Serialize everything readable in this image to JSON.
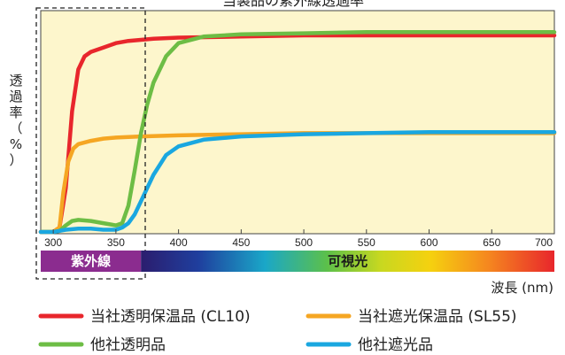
{
  "chart_data": {
    "type": "line",
    "title": "当製品の紫外線透過率",
    "ylabel": "透過率（%）",
    "xlabel": "波長 (nm)",
    "xlim": [
      290,
      700
    ],
    "x_ticks": [
      300,
      350,
      400,
      450,
      500,
      550,
      600,
      650,
      700
    ],
    "x_tick_labels": [
      "300",
      "350",
      "400",
      "450",
      "500",
      "550",
      "600",
      "650",
      "700"
    ],
    "ylim": [
      0,
      100
    ],
    "y_ticks_labeled": false,
    "grid": false,
    "legend_position": "bottom",
    "bands": [
      {
        "label": "紫外線",
        "range": [
          290,
          370
        ],
        "color": "#8b2c8f"
      },
      {
        "label": "可視光",
        "range": [
          370,
          700
        ],
        "color": "spectrum"
      }
    ],
    "series": [
      {
        "name": "当社透明保温品 (CL10)",
        "color": "#e8262c",
        "points": [
          [
            290,
            0
          ],
          [
            300,
            0
          ],
          [
            305,
            2
          ],
          [
            310,
            20
          ],
          [
            315,
            55
          ],
          [
            320,
            74
          ],
          [
            325,
            80
          ],
          [
            330,
            82
          ],
          [
            340,
            84
          ],
          [
            350,
            86
          ],
          [
            360,
            87
          ],
          [
            370,
            87.5
          ],
          [
            380,
            88
          ],
          [
            400,
            88.5
          ],
          [
            450,
            89
          ],
          [
            500,
            89.5
          ],
          [
            550,
            89.5
          ],
          [
            600,
            89.5
          ],
          [
            650,
            89.5
          ],
          [
            700,
            89.5
          ]
        ]
      },
      {
        "name": "当社遮光保温品 (SL55)",
        "color": "#f5a623",
        "points": [
          [
            290,
            0
          ],
          [
            300,
            0
          ],
          [
            305,
            2
          ],
          [
            308,
            18
          ],
          [
            312,
            32
          ],
          [
            316,
            38
          ],
          [
            320,
            40
          ],
          [
            330,
            41.5
          ],
          [
            340,
            42.5
          ],
          [
            350,
            43
          ],
          [
            370,
            43.5
          ],
          [
            400,
            44
          ],
          [
            450,
            44.5
          ],
          [
            500,
            45
          ],
          [
            550,
            45
          ],
          [
            600,
            45
          ],
          [
            650,
            45
          ],
          [
            700,
            45
          ]
        ]
      },
      {
        "name": "他社透明品",
        "color": "#6dbd45",
        "points": [
          [
            290,
            0
          ],
          [
            300,
            0
          ],
          [
            305,
            0.5
          ],
          [
            310,
            3
          ],
          [
            315,
            5
          ],
          [
            320,
            5.5
          ],
          [
            330,
            5
          ],
          [
            340,
            4
          ],
          [
            350,
            3
          ],
          [
            355,
            4
          ],
          [
            360,
            12
          ],
          [
            365,
            28
          ],
          [
            370,
            45
          ],
          [
            375,
            58
          ],
          [
            380,
            68
          ],
          [
            390,
            80
          ],
          [
            400,
            86
          ],
          [
            420,
            89
          ],
          [
            450,
            90
          ],
          [
            500,
            90.5
          ],
          [
            550,
            91
          ],
          [
            600,
            91
          ],
          [
            650,
            91
          ],
          [
            700,
            91
          ]
        ]
      },
      {
        "name": "他社遮光品",
        "color": "#1aa7e0",
        "points": [
          [
            290,
            0
          ],
          [
            300,
            0
          ],
          [
            305,
            0.5
          ],
          [
            310,
            1
          ],
          [
            320,
            1.5
          ],
          [
            330,
            1.5
          ],
          [
            340,
            1
          ],
          [
            350,
            1
          ],
          [
            355,
            2
          ],
          [
            360,
            4
          ],
          [
            365,
            8
          ],
          [
            370,
            14
          ],
          [
            375,
            20
          ],
          [
            380,
            26
          ],
          [
            390,
            35
          ],
          [
            400,
            39
          ],
          [
            420,
            42
          ],
          [
            450,
            43.5
          ],
          [
            500,
            44.5
          ],
          [
            550,
            45
          ],
          [
            600,
            45.5
          ],
          [
            650,
            45.5
          ],
          [
            700,
            45.5
          ]
        ]
      }
    ]
  },
  "legend": [
    {
      "label": "当社透明保温品 (CL10)",
      "color": "#e8262c"
    },
    {
      "label": "当社遮光保温品 (SL55)",
      "color": "#f5a623"
    },
    {
      "label": "他社透明品",
      "color": "#6dbd45"
    },
    {
      "label": "他社遮光品",
      "color": "#1aa7e0"
    }
  ],
  "colors": {
    "plot_background": "#fdf6cc",
    "axis": "#222222",
    "uv_band": "#8b2c8f"
  }
}
